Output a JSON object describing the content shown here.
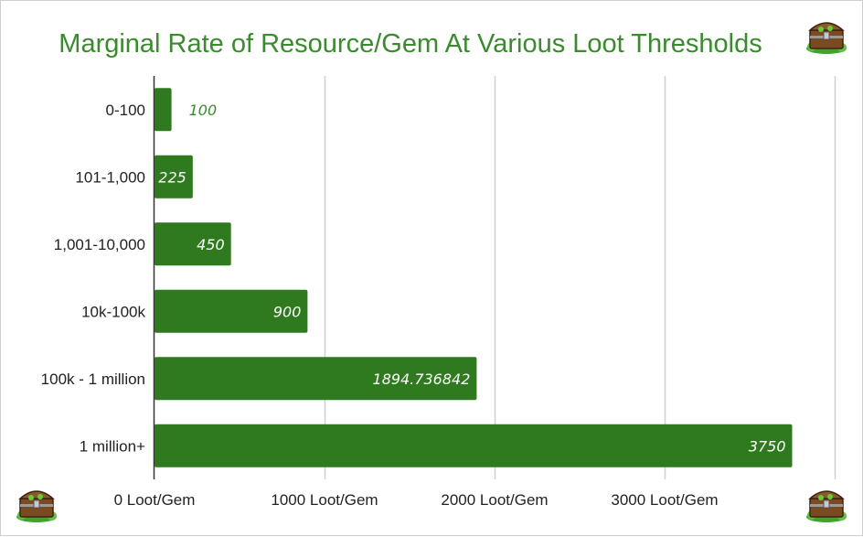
{
  "chart_data": {
    "type": "bar",
    "orientation": "horizontal",
    "title": "Marginal Rate of Resource/Gem At Various Loot Thresholds",
    "categories": [
      "0-100",
      "101-1,000",
      "1,001-10,000",
      "10k-100k",
      "100k - 1 million",
      "1 million+"
    ],
    "values": [
      100,
      225,
      450,
      900,
      1894.736842,
      3750
    ],
    "data_labels": [
      "100",
      "225",
      "450",
      "900",
      "1894.736842",
      "3750"
    ],
    "x_ticks": [
      {
        "value": 0,
        "label": "0 Loot/Gem"
      },
      {
        "value": 1000,
        "label": "1000 Loot/Gem"
      },
      {
        "value": 2000,
        "label": "2000 Loot/Gem"
      },
      {
        "value": 3000,
        "label": "3000 Loot/Gem"
      }
    ],
    "xlim": [
      0,
      4000
    ],
    "grid": true,
    "legend": "none",
    "colors": {
      "bar": "#2f7a1f",
      "title": "#3a8a2e",
      "grid": "#d0d0d0",
      "label_inside": "#ffffff",
      "label_outside": "#3a8a2e"
    }
  },
  "decorations": {
    "icon": "treasure-chest-icon"
  }
}
